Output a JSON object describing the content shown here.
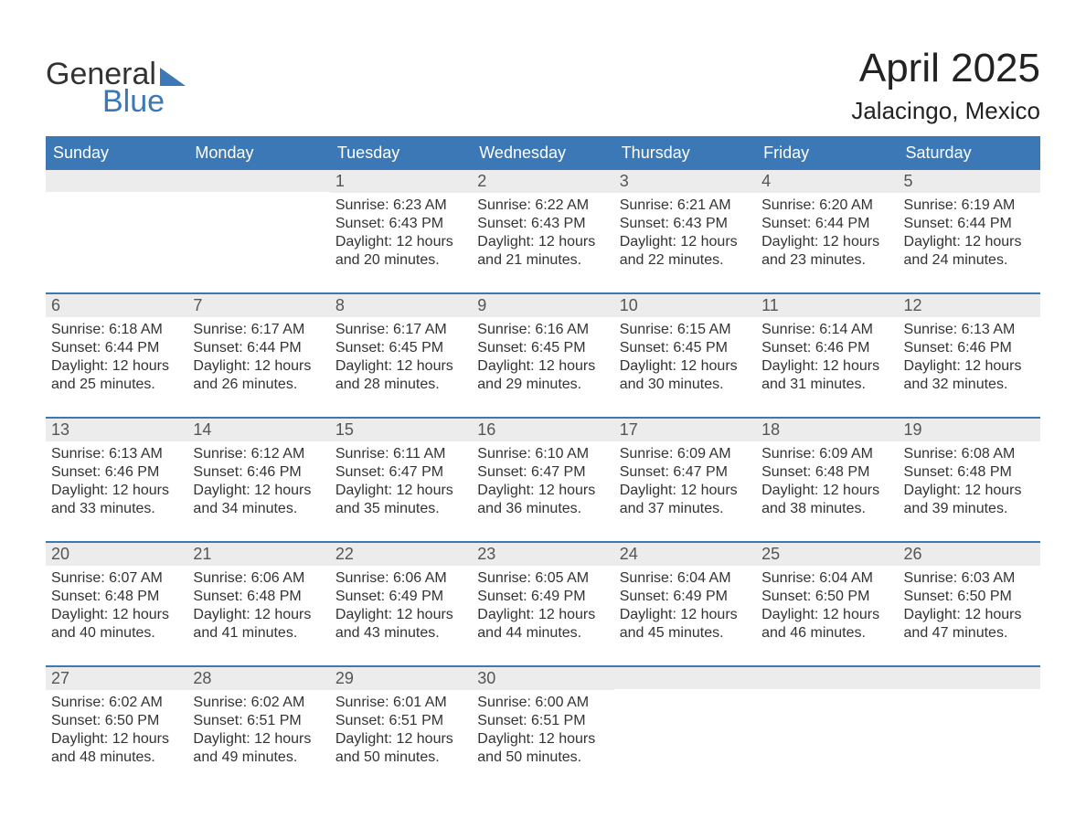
{
  "brand": {
    "top": "General",
    "bottom": "Blue",
    "accent_color": "#3b78b5"
  },
  "title": "April 2025",
  "location": "Jalacingo, Mexico",
  "days_of_week": [
    "Sunday",
    "Monday",
    "Tuesday",
    "Wednesday",
    "Thursday",
    "Friday",
    "Saturday"
  ],
  "styling": {
    "header_bg": "#3b78b5",
    "header_text": "#ffffff",
    "daynum_bg": "#ececec",
    "row_divider": "#3b78b5",
    "body_text": "#333333",
    "page_bg": "#ffffff",
    "title_fontsize": 44,
    "location_fontsize": 26,
    "th_fontsize": 18,
    "cell_fontsize": 16
  },
  "weeks": [
    [
      {
        "n": "",
        "sunrise": "",
        "sunset": "",
        "daylight": ""
      },
      {
        "n": "",
        "sunrise": "",
        "sunset": "",
        "daylight": ""
      },
      {
        "n": "1",
        "sunrise": "Sunrise: 6:23 AM",
        "sunset": "Sunset: 6:43 PM",
        "daylight": "Daylight: 12 hours and 20 minutes."
      },
      {
        "n": "2",
        "sunrise": "Sunrise: 6:22 AM",
        "sunset": "Sunset: 6:43 PM",
        "daylight": "Daylight: 12 hours and 21 minutes."
      },
      {
        "n": "3",
        "sunrise": "Sunrise: 6:21 AM",
        "sunset": "Sunset: 6:43 PM",
        "daylight": "Daylight: 12 hours and 22 minutes."
      },
      {
        "n": "4",
        "sunrise": "Sunrise: 6:20 AM",
        "sunset": "Sunset: 6:44 PM",
        "daylight": "Daylight: 12 hours and 23 minutes."
      },
      {
        "n": "5",
        "sunrise": "Sunrise: 6:19 AM",
        "sunset": "Sunset: 6:44 PM",
        "daylight": "Daylight: 12 hours and 24 minutes."
      }
    ],
    [
      {
        "n": "6",
        "sunrise": "Sunrise: 6:18 AM",
        "sunset": "Sunset: 6:44 PM",
        "daylight": "Daylight: 12 hours and 25 minutes."
      },
      {
        "n": "7",
        "sunrise": "Sunrise: 6:17 AM",
        "sunset": "Sunset: 6:44 PM",
        "daylight": "Daylight: 12 hours and 26 minutes."
      },
      {
        "n": "8",
        "sunrise": "Sunrise: 6:17 AM",
        "sunset": "Sunset: 6:45 PM",
        "daylight": "Daylight: 12 hours and 28 minutes."
      },
      {
        "n": "9",
        "sunrise": "Sunrise: 6:16 AM",
        "sunset": "Sunset: 6:45 PM",
        "daylight": "Daylight: 12 hours and 29 minutes."
      },
      {
        "n": "10",
        "sunrise": "Sunrise: 6:15 AM",
        "sunset": "Sunset: 6:45 PM",
        "daylight": "Daylight: 12 hours and 30 minutes."
      },
      {
        "n": "11",
        "sunrise": "Sunrise: 6:14 AM",
        "sunset": "Sunset: 6:46 PM",
        "daylight": "Daylight: 12 hours and 31 minutes."
      },
      {
        "n": "12",
        "sunrise": "Sunrise: 6:13 AM",
        "sunset": "Sunset: 6:46 PM",
        "daylight": "Daylight: 12 hours and 32 minutes."
      }
    ],
    [
      {
        "n": "13",
        "sunrise": "Sunrise: 6:13 AM",
        "sunset": "Sunset: 6:46 PM",
        "daylight": "Daylight: 12 hours and 33 minutes."
      },
      {
        "n": "14",
        "sunrise": "Sunrise: 6:12 AM",
        "sunset": "Sunset: 6:46 PM",
        "daylight": "Daylight: 12 hours and 34 minutes."
      },
      {
        "n": "15",
        "sunrise": "Sunrise: 6:11 AM",
        "sunset": "Sunset: 6:47 PM",
        "daylight": "Daylight: 12 hours and 35 minutes."
      },
      {
        "n": "16",
        "sunrise": "Sunrise: 6:10 AM",
        "sunset": "Sunset: 6:47 PM",
        "daylight": "Daylight: 12 hours and 36 minutes."
      },
      {
        "n": "17",
        "sunrise": "Sunrise: 6:09 AM",
        "sunset": "Sunset: 6:47 PM",
        "daylight": "Daylight: 12 hours and 37 minutes."
      },
      {
        "n": "18",
        "sunrise": "Sunrise: 6:09 AM",
        "sunset": "Sunset: 6:48 PM",
        "daylight": "Daylight: 12 hours and 38 minutes."
      },
      {
        "n": "19",
        "sunrise": "Sunrise: 6:08 AM",
        "sunset": "Sunset: 6:48 PM",
        "daylight": "Daylight: 12 hours and 39 minutes."
      }
    ],
    [
      {
        "n": "20",
        "sunrise": "Sunrise: 6:07 AM",
        "sunset": "Sunset: 6:48 PM",
        "daylight": "Daylight: 12 hours and 40 minutes."
      },
      {
        "n": "21",
        "sunrise": "Sunrise: 6:06 AM",
        "sunset": "Sunset: 6:48 PM",
        "daylight": "Daylight: 12 hours and 41 minutes."
      },
      {
        "n": "22",
        "sunrise": "Sunrise: 6:06 AM",
        "sunset": "Sunset: 6:49 PM",
        "daylight": "Daylight: 12 hours and 43 minutes."
      },
      {
        "n": "23",
        "sunrise": "Sunrise: 6:05 AM",
        "sunset": "Sunset: 6:49 PM",
        "daylight": "Daylight: 12 hours and 44 minutes."
      },
      {
        "n": "24",
        "sunrise": "Sunrise: 6:04 AM",
        "sunset": "Sunset: 6:49 PM",
        "daylight": "Daylight: 12 hours and 45 minutes."
      },
      {
        "n": "25",
        "sunrise": "Sunrise: 6:04 AM",
        "sunset": "Sunset: 6:50 PM",
        "daylight": "Daylight: 12 hours and 46 minutes."
      },
      {
        "n": "26",
        "sunrise": "Sunrise: 6:03 AM",
        "sunset": "Sunset: 6:50 PM",
        "daylight": "Daylight: 12 hours and 47 minutes."
      }
    ],
    [
      {
        "n": "27",
        "sunrise": "Sunrise: 6:02 AM",
        "sunset": "Sunset: 6:50 PM",
        "daylight": "Daylight: 12 hours and 48 minutes."
      },
      {
        "n": "28",
        "sunrise": "Sunrise: 6:02 AM",
        "sunset": "Sunset: 6:51 PM",
        "daylight": "Daylight: 12 hours and 49 minutes."
      },
      {
        "n": "29",
        "sunrise": "Sunrise: 6:01 AM",
        "sunset": "Sunset: 6:51 PM",
        "daylight": "Daylight: 12 hours and 50 minutes."
      },
      {
        "n": "30",
        "sunrise": "Sunrise: 6:00 AM",
        "sunset": "Sunset: 6:51 PM",
        "daylight": "Daylight: 12 hours and 50 minutes."
      },
      {
        "n": "",
        "sunrise": "",
        "sunset": "",
        "daylight": ""
      },
      {
        "n": "",
        "sunrise": "",
        "sunset": "",
        "daylight": ""
      },
      {
        "n": "",
        "sunrise": "",
        "sunset": "",
        "daylight": ""
      }
    ]
  ]
}
